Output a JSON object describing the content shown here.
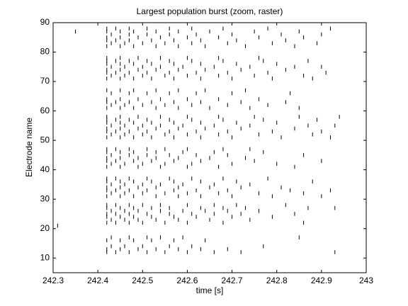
{
  "chart_data": {
    "type": "raster",
    "title": "Largest population burst (zoom, raster)",
    "xlabel": "time [s]",
    "ylabel": "Electrode name",
    "xlim": [
      242.3,
      243
    ],
    "ylim": [
      5,
      90
    ],
    "xticks": [
      242.3,
      242.4,
      242.5,
      242.6,
      242.7,
      242.8,
      242.9,
      243
    ],
    "yticks": [
      10,
      20,
      30,
      40,
      50,
      60,
      70,
      80,
      90
    ],
    "color": "#000000",
    "rows": [
      {
        "electrode": 12,
        "times": [
          242.42,
          242.44,
          242.47,
          242.51,
          242.55,
          242.6,
          242.66,
          242.72,
          242.93
        ]
      },
      {
        "electrode": 13,
        "times": [
          242.42,
          242.45,
          242.49,
          242.53,
          242.58,
          242.63,
          242.69
        ]
      },
      {
        "electrode": 14,
        "times": [
          242.43,
          242.46,
          242.5,
          242.56,
          242.61,
          242.77
        ]
      },
      {
        "electrode": 16,
        "times": [
          242.42,
          242.45,
          242.48,
          242.52,
          242.57,
          242.64
        ]
      },
      {
        "electrode": 17,
        "times": [
          242.43,
          242.47,
          242.51,
          242.54,
          242.59,
          242.85
        ]
      },
      {
        "electrode": 21,
        "times": [
          242.31
        ]
      },
      {
        "electrode": 22,
        "times": [
          242.42,
          242.44,
          242.47,
          242.5,
          242.55,
          242.6,
          242.68,
          242.86
        ]
      },
      {
        "electrode": 23,
        "times": [
          242.43,
          242.46,
          242.49,
          242.53,
          242.58,
          242.65,
          242.74
        ]
      },
      {
        "electrode": 24,
        "times": [
          242.42,
          242.45,
          242.48,
          242.52,
          242.57,
          242.62,
          242.7,
          242.79
        ]
      },
      {
        "electrode": 25,
        "times": [
          242.42,
          242.44,
          242.47,
          242.51,
          242.56,
          242.61,
          242.66,
          242.72,
          242.84
        ]
      },
      {
        "electrode": 26,
        "times": [
          242.43,
          242.46,
          242.49,
          242.54,
          242.59,
          242.64,
          242.69,
          242.76
        ]
      },
      {
        "electrode": 27,
        "times": [
          242.42,
          242.45,
          242.48,
          242.52,
          242.56,
          242.63,
          242.68,
          242.73,
          242.87,
          242.93
        ]
      },
      {
        "electrode": 28,
        "times": [
          242.42,
          242.44,
          242.47,
          242.5,
          242.54,
          242.6,
          242.66,
          242.71,
          242.82
        ]
      },
      {
        "electrode": 31,
        "times": [
          242.42,
          242.45,
          242.48,
          242.53,
          242.58,
          242.63,
          242.7,
          242.79,
          242.9
        ]
      },
      {
        "electrode": 32,
        "times": [
          242.43,
          242.46,
          242.5,
          242.55,
          242.6,
          242.67,
          242.76,
          242.86
        ]
      },
      {
        "electrode": 33,
        "times": [
          242.42,
          242.44,
          242.47,
          242.51,
          242.57,
          242.62,
          242.69,
          242.83,
          242.92
        ]
      },
      {
        "electrode": 34,
        "times": [
          242.42,
          242.45,
          242.49,
          242.53,
          242.58,
          242.65,
          242.72,
          242.81
        ]
      },
      {
        "electrode": 35,
        "times": [
          242.43,
          242.46,
          242.5,
          242.54,
          242.59,
          242.66,
          242.74
        ]
      },
      {
        "electrode": 36,
        "times": [
          242.42,
          242.45,
          242.48,
          242.52,
          242.57,
          242.63,
          242.71,
          242.88
        ]
      },
      {
        "electrode": 37,
        "times": [
          242.42,
          242.44,
          242.47,
          242.51,
          242.56,
          242.61,
          242.68,
          242.78
        ]
      },
      {
        "electrode": 41,
        "times": [
          242.42,
          242.45,
          242.49,
          242.54,
          242.6,
          242.67,
          242.84
        ]
      },
      {
        "electrode": 42,
        "times": [
          242.43,
          242.46,
          242.5,
          242.55,
          242.61,
          242.7,
          242.8
        ]
      },
      {
        "electrode": 43,
        "times": [
          242.42,
          242.44,
          242.48,
          242.52,
          242.57,
          242.63,
          242.75,
          242.9
        ]
      },
      {
        "electrode": 44,
        "times": [
          242.42,
          242.45,
          242.49,
          242.53,
          242.58,
          242.65,
          242.73
        ]
      },
      {
        "electrode": 45,
        "times": [
          242.43,
          242.47,
          242.51,
          242.56,
          242.62,
          242.69,
          242.86
        ]
      },
      {
        "electrode": 46,
        "times": [
          242.42,
          242.45,
          242.48,
          242.53,
          242.59,
          242.66,
          242.77
        ]
      },
      {
        "electrode": 47,
        "times": [
          242.42,
          242.44,
          242.47,
          242.51,
          242.55,
          242.6,
          242.68,
          242.74
        ]
      },
      {
        "electrode": 51,
        "times": [
          242.42,
          242.45,
          242.48,
          242.52,
          242.57,
          242.63,
          242.7,
          242.81,
          242.92
        ]
      },
      {
        "electrode": 52,
        "times": [
          242.43,
          242.46,
          242.5,
          242.55,
          242.6,
          242.67,
          242.76,
          242.88
        ]
      },
      {
        "electrode": 53,
        "times": [
          242.42,
          242.44,
          242.47,
          242.51,
          242.56,
          242.62,
          242.69,
          242.79,
          242.9
        ]
      },
      {
        "electrode": 54,
        "times": [
          242.42,
          242.45,
          242.49,
          242.53,
          242.58,
          242.64,
          242.72,
          242.84
        ]
      },
      {
        "electrode": 55,
        "times": [
          242.43,
          242.46,
          242.5,
          242.54,
          242.59,
          242.66,
          242.74,
          242.87,
          242.93
        ]
      },
      {
        "electrode": 56,
        "times": [
          242.42,
          242.45,
          242.48,
          242.52,
          242.57,
          242.63,
          242.71,
          242.8
        ]
      },
      {
        "electrode": 57,
        "times": [
          242.42,
          242.44,
          242.47,
          242.51,
          242.56,
          242.61,
          242.68,
          242.77,
          242.89
        ]
      },
      {
        "electrode": 58,
        "times": [
          242.42,
          242.45,
          242.49,
          242.54,
          242.6,
          242.67,
          242.75,
          242.85,
          242.94
        ]
      },
      {
        "electrode": 61,
        "times": [
          242.42,
          242.45,
          242.48,
          242.53,
          242.58,
          242.65,
          242.74,
          242.85
        ]
      },
      {
        "electrode": 62,
        "times": [
          242.43,
          242.46,
          242.5,
          242.55,
          242.61,
          242.69,
          242.78
        ]
      },
      {
        "electrode": 63,
        "times": [
          242.42,
          242.44,
          242.47,
          242.52,
          242.57,
          242.63,
          242.72,
          242.82
        ]
      },
      {
        "electrode": 64,
        "times": [
          242.42,
          242.45,
          242.49,
          242.54,
          242.6,
          242.67,
          242.76
        ]
      },
      {
        "electrode": 66,
        "times": [
          242.43,
          242.47,
          242.51,
          242.56,
          242.62,
          242.7,
          242.83
        ]
      },
      {
        "electrode": 67,
        "times": [
          242.42,
          242.45,
          242.48,
          242.53,
          242.58,
          242.64,
          242.73
        ]
      },
      {
        "electrode": 71,
        "times": [
          242.42,
          242.45,
          242.48,
          242.52,
          242.57,
          242.63,
          242.7,
          242.79,
          242.88
        ]
      },
      {
        "electrode": 72,
        "times": [
          242.43,
          242.46,
          242.5,
          242.55,
          242.6,
          242.67,
          242.75,
          242.86
        ]
      },
      {
        "electrode": 73,
        "times": [
          242.42,
          242.44,
          242.47,
          242.51,
          242.56,
          242.62,
          242.69,
          242.78,
          242.91
        ]
      },
      {
        "electrode": 74,
        "times": [
          242.42,
          242.45,
          242.49,
          242.53,
          242.58,
          242.64,
          242.72,
          242.82
        ]
      },
      {
        "electrode": 75,
        "times": [
          242.43,
          242.46,
          242.5,
          242.54,
          242.59,
          242.66,
          242.74,
          242.84,
          242.9
        ]
      },
      {
        "electrode": 76,
        "times": [
          242.42,
          242.45,
          242.48,
          242.52,
          242.57,
          242.63,
          242.71,
          242.8
        ]
      },
      {
        "electrode": 77,
        "times": [
          242.42,
          242.44,
          242.47,
          242.51,
          242.56,
          242.61,
          242.68,
          242.77,
          242.87
        ]
      },
      {
        "electrode": 78,
        "times": [
          242.42,
          242.45,
          242.49,
          242.54,
          242.6,
          242.67,
          242.76
        ]
      },
      {
        "electrode": 82,
        "times": [
          242.42,
          242.45,
          242.48,
          242.53,
          242.58,
          242.64,
          242.73,
          242.84
        ]
      },
      {
        "electrode": 83,
        "times": [
          242.43,
          242.46,
          242.5,
          242.55,
          242.61,
          242.69,
          242.79,
          242.89
        ]
      },
      {
        "electrode": 84,
        "times": [
          242.42,
          242.44,
          242.47,
          242.52,
          242.57,
          242.63,
          242.71,
          242.82
        ]
      },
      {
        "electrode": 85,
        "times": [
          242.42,
          242.45,
          242.49,
          242.54,
          242.6,
          242.67,
          242.76,
          242.86
        ]
      },
      {
        "electrode": 86,
        "times": [
          242.43,
          242.47,
          242.51,
          242.56,
          242.62,
          242.7,
          242.81,
          242.9
        ]
      },
      {
        "electrode": 87,
        "times": [
          242.35,
          242.42,
          242.45,
          242.48,
          242.53,
          242.58,
          242.65,
          242.75,
          242.85
        ]
      },
      {
        "electrode": 88,
        "times": [
          242.42,
          242.44,
          242.47,
          242.51,
          242.56,
          242.61,
          242.68,
          242.78,
          242.92
        ]
      }
    ]
  }
}
